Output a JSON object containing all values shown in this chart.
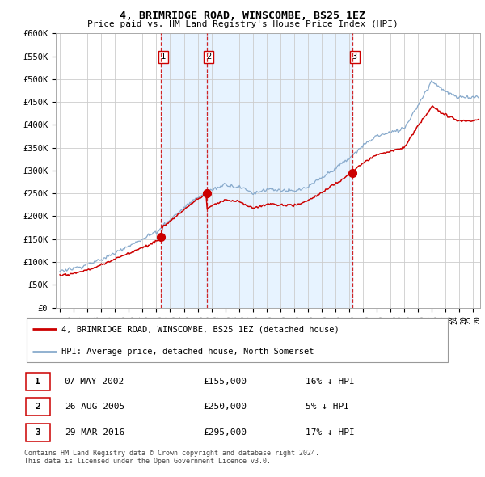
{
  "title": "4, BRIMRIDGE ROAD, WINSCOMBE, BS25 1EZ",
  "subtitle": "Price paid vs. HM Land Registry's House Price Index (HPI)",
  "ylim": [
    0,
    600000
  ],
  "yticks": [
    0,
    50000,
    100000,
    150000,
    200000,
    250000,
    300000,
    350000,
    400000,
    450000,
    500000,
    550000,
    600000
  ],
  "ytick_labels": [
    "£0",
    "£50K",
    "£100K",
    "£150K",
    "£200K",
    "£250K",
    "£300K",
    "£350K",
    "£400K",
    "£450K",
    "£500K",
    "£550K",
    "£600K"
  ],
  "sale_dates": [
    "07-MAY-2002",
    "26-AUG-2005",
    "29-MAR-2016"
  ],
  "sale_prices": [
    155000,
    250000,
    295000
  ],
  "sale_hpi_pct": [
    "16% ↓ HPI",
    "5% ↓ HPI",
    "17% ↓ HPI"
  ],
  "sale_years": [
    2002.35,
    2005.65,
    2016.25
  ],
  "legend_property": "4, BRIMRIDGE ROAD, WINSCOMBE, BS25 1EZ (detached house)",
  "legend_hpi": "HPI: Average price, detached house, North Somerset",
  "footer": "Contains HM Land Registry data © Crown copyright and database right 2024.\nThis data is licensed under the Open Government Licence v3.0.",
  "red_color": "#cc0000",
  "blue_color": "#88aacc",
  "shade_color": "#ddeeff",
  "vline_color": "#cc0000",
  "grid_color": "#cccccc",
  "xmin": 1994.7,
  "xmax": 2025.5
}
